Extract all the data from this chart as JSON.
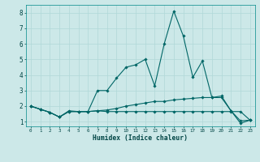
{
  "xlabel": "Humidex (Indice chaleur)",
  "background_color": "#cce8e8",
  "grid_color": "#b0d8d8",
  "line_color": "#006666",
  "xlim": [
    -0.5,
    23.5
  ],
  "ylim": [
    0.7,
    8.5
  ],
  "xticks": [
    0,
    1,
    2,
    3,
    4,
    5,
    6,
    7,
    8,
    9,
    10,
    11,
    12,
    13,
    14,
    15,
    16,
    17,
    18,
    19,
    20,
    21,
    22,
    23
  ],
  "yticks": [
    1,
    2,
    3,
    4,
    5,
    6,
    7,
    8
  ],
  "series": [
    [
      2.0,
      1.8,
      1.6,
      1.3,
      1.7,
      1.65,
      1.65,
      1.7,
      1.75,
      1.85,
      2.0,
      2.1,
      2.2,
      2.3,
      2.3,
      2.4,
      2.45,
      2.5,
      2.55,
      2.55,
      2.55,
      1.7,
      1.05,
      1.1
    ],
    [
      2.0,
      1.8,
      1.6,
      1.3,
      1.65,
      1.65,
      1.65,
      1.7,
      1.65,
      1.65,
      1.65,
      1.65,
      1.65,
      1.65,
      1.65,
      1.65,
      1.65,
      1.65,
      1.65,
      1.65,
      1.65,
      1.65,
      1.65,
      1.1
    ],
    [
      2.0,
      1.8,
      1.6,
      1.3,
      1.65,
      1.65,
      1.65,
      3.0,
      3.0,
      3.8,
      4.5,
      4.65,
      5.0,
      3.3,
      6.0,
      8.1,
      6.5,
      3.85,
      4.9,
      2.55,
      2.65,
      1.7,
      0.9,
      1.1
    ]
  ]
}
